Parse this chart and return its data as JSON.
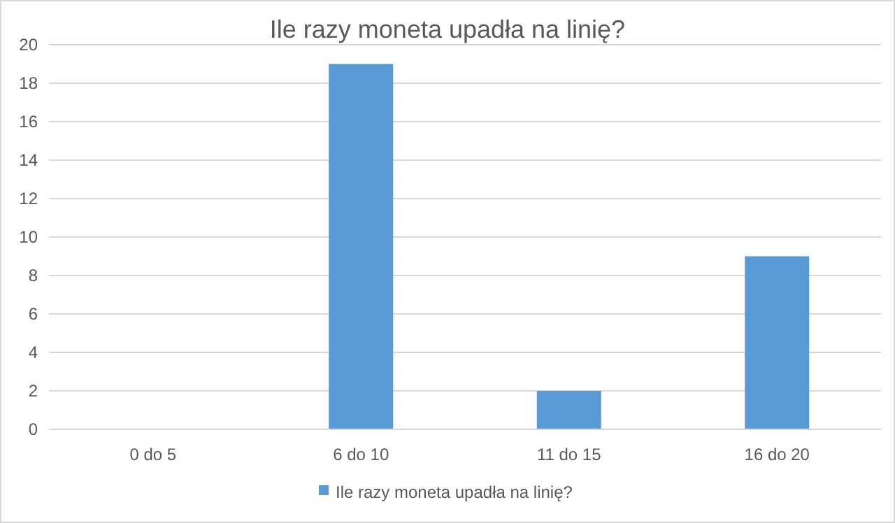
{
  "chart_data": {
    "type": "bar",
    "title": "Ile razy moneta upadła na linię?",
    "categories": [
      "0 do 5",
      "6 do 10",
      "11 do 15",
      "16 do 20"
    ],
    "series": [
      {
        "name": "Ile razy moneta upadła na linię?",
        "color": "#5b9bd5",
        "values": [
          0,
          19,
          2,
          9
        ]
      }
    ],
    "ylim": [
      0,
      20
    ],
    "yticks": [
      0,
      2,
      4,
      6,
      8,
      10,
      12,
      14,
      16,
      18,
      20
    ],
    "grid": "y",
    "legend": "bottom"
  }
}
